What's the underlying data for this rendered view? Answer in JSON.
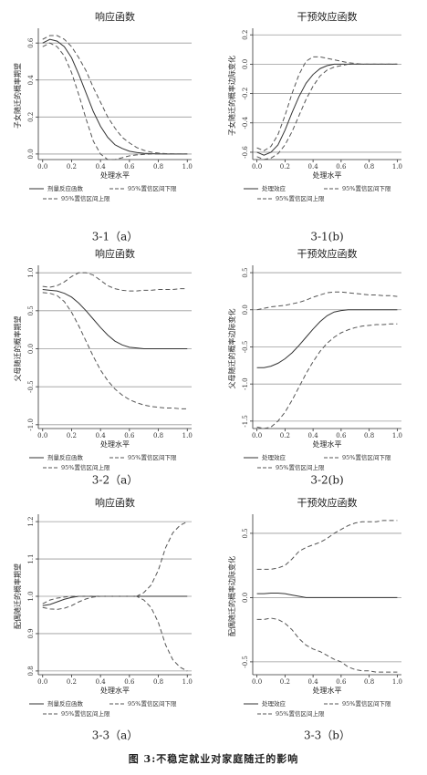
{
  "caption": "图 3:不稳定就业对家庭随迁的影响",
  "chart_data": [
    {
      "type": "line",
      "title": "响应函数",
      "caption": "3-1（a）",
      "x_label": "处理水平",
      "y_label": "子女随迁的概率期望",
      "x": [
        0,
        0.05,
        0.1,
        0.15,
        0.2,
        0.25,
        0.3,
        0.35,
        0.4,
        0.45,
        0.5,
        0.55,
        0.6,
        0.65,
        0.7,
        0.75,
        0.8,
        0.85,
        0.9,
        0.95,
        1.0
      ],
      "xlim": [
        -0.03,
        1.03
      ],
      "xticks": [
        {
          "value": 0,
          "label": "0.0"
        },
        0.2,
        0.4,
        0.6,
        0.8,
        {
          "value": 1,
          "label": "1.0"
        }
      ],
      "ylim": [
        -0.03,
        0.66
      ],
      "yticks": [
        {
          "value": 0,
          "label": "0.0"
        },
        0.2,
        0.4,
        0.6
      ],
      "grid": true,
      "series": [
        {
          "name": "剂量反应函数",
          "color": "#333333",
          "style": "solid",
          "values": [
            0.6,
            0.62,
            0.61,
            0.58,
            0.52,
            0.43,
            0.33,
            0.23,
            0.15,
            0.09,
            0.05,
            0.03,
            0.015,
            0.008,
            0.004,
            0.002,
            0.001,
            0,
            0,
            0,
            0
          ]
        },
        {
          "name": "95%置信区间下限",
          "color": "#555555",
          "style": "dashed",
          "values": [
            0.58,
            0.6,
            0.58,
            0.53,
            0.44,
            0.32,
            0.19,
            0.07,
            0,
            -0.03,
            -0.03,
            -0.02,
            -0.01,
            -0.005,
            -0.002,
            0,
            0,
            0,
            0,
            0,
            0
          ]
        },
        {
          "name": "95%置信区间上限",
          "color": "#555555",
          "style": "dashed",
          "values": [
            0.62,
            0.64,
            0.64,
            0.62,
            0.58,
            0.52,
            0.45,
            0.36,
            0.28,
            0.2,
            0.14,
            0.09,
            0.06,
            0.035,
            0.02,
            0.01,
            0.005,
            0.002,
            0.001,
            0,
            0
          ]
        }
      ]
    },
    {
      "type": "line",
      "title": "干预效应函数",
      "caption": "3-1(b)",
      "x_label": "处理水平",
      "y_label": "子女随迁的概率边际变化",
      "x": [
        0,
        0.05,
        0.1,
        0.15,
        0.2,
        0.25,
        0.3,
        0.35,
        0.4,
        0.45,
        0.5,
        0.55,
        0.6,
        0.65,
        0.7,
        0.75,
        0.8,
        0.85,
        0.9,
        0.95,
        1.0
      ],
      "xlim": [
        -0.03,
        1.03
      ],
      "xticks": [
        {
          "value": 0,
          "label": "0.0"
        },
        0.2,
        0.4,
        0.6,
        0.8,
        {
          "value": 1,
          "label": "1.0"
        }
      ],
      "ylim": [
        -0.65,
        0.22
      ],
      "yticks": [
        -0.6,
        -0.4,
        -0.2,
        {
          "value": 0,
          "label": "0.0"
        },
        0.2
      ],
      "grid": true,
      "series": [
        {
          "name": "处理效应",
          "color": "#333333",
          "style": "solid",
          "values": [
            -0.6,
            -0.62,
            -0.6,
            -0.55,
            -0.45,
            -0.33,
            -0.22,
            -0.13,
            -0.07,
            -0.03,
            -0.01,
            0,
            0,
            0,
            0,
            0,
            0,
            0,
            0,
            0,
            0
          ]
        },
        {
          "name": "95%置信区间下限",
          "color": "#555555",
          "style": "dashed",
          "values": [
            -0.63,
            -0.65,
            -0.64,
            -0.61,
            -0.55,
            -0.46,
            -0.35,
            -0.24,
            -0.15,
            -0.08,
            -0.04,
            -0.02,
            -0.01,
            0,
            0,
            0,
            0,
            0,
            0,
            0,
            0
          ]
        },
        {
          "name": "95%置信区间上限",
          "color": "#555555",
          "style": "dashed",
          "values": [
            -0.57,
            -0.59,
            -0.56,
            -0.48,
            -0.35,
            -0.2,
            -0.07,
            0.02,
            0.05,
            0.05,
            0.04,
            0.03,
            0.02,
            0.01,
            0.005,
            0,
            0,
            0,
            0,
            0,
            0
          ]
        }
      ]
    },
    {
      "type": "line",
      "title": "响应函数",
      "caption": "3-2（a）",
      "x_label": "处理水平",
      "y_label": "父母随迁的概率期望",
      "x": [
        0,
        0.05,
        0.1,
        0.15,
        0.2,
        0.25,
        0.3,
        0.35,
        0.4,
        0.45,
        0.5,
        0.55,
        0.6,
        0.65,
        0.7,
        0.75,
        0.8,
        0.85,
        0.9,
        0.95,
        1.0
      ],
      "xlim": [
        -0.03,
        1.03
      ],
      "xticks": [
        {
          "value": 0,
          "label": "0.0"
        },
        0.2,
        0.4,
        0.6,
        0.8,
        {
          "value": 1,
          "label": "1.0"
        }
      ],
      "ylim": [
        -1.05,
        1.05
      ],
      "yticks": [
        {
          "value": -1,
          "label": "-1.0"
        },
        -0.5,
        {
          "value": 0,
          "label": "0.0"
        },
        0.5,
        {
          "value": 1,
          "label": "1.0"
        }
      ],
      "grid": true,
      "series": [
        {
          "name": "剂量反应函数",
          "color": "#333333",
          "style": "solid",
          "values": [
            0.78,
            0.77,
            0.76,
            0.73,
            0.68,
            0.6,
            0.5,
            0.39,
            0.28,
            0.18,
            0.1,
            0.05,
            0.02,
            0.01,
            0,
            0,
            0,
            0,
            0,
            0,
            0
          ]
        },
        {
          "name": "95%置信区间下限",
          "color": "#555555",
          "style": "dashed",
          "values": [
            0.74,
            0.73,
            0.7,
            0.62,
            0.48,
            0.3,
            0.1,
            -0.1,
            -0.28,
            -0.42,
            -0.53,
            -0.61,
            -0.67,
            -0.71,
            -0.74,
            -0.76,
            -0.77,
            -0.78,
            -0.78,
            -0.79,
            -0.79
          ]
        },
        {
          "name": "95%置信区间上限",
          "color": "#555555",
          "style": "dashed",
          "values": [
            0.82,
            0.81,
            0.83,
            0.88,
            0.95,
            1.0,
            1.0,
            0.97,
            0.9,
            0.83,
            0.79,
            0.77,
            0.76,
            0.76,
            0.77,
            0.77,
            0.78,
            0.78,
            0.78,
            0.79,
            0.79
          ]
        }
      ]
    },
    {
      "type": "line",
      "title": "干预效应函数",
      "caption": "3-2(b)",
      "x_label": "处理水平",
      "y_label": "父母随迁的概率边际变化",
      "x": [
        0,
        0.05,
        0.1,
        0.15,
        0.2,
        0.25,
        0.3,
        0.35,
        0.4,
        0.45,
        0.5,
        0.55,
        0.6,
        0.65,
        0.7,
        0.75,
        0.8,
        0.85,
        0.9,
        0.95,
        1.0
      ],
      "xlim": [
        -0.03,
        1.03
      ],
      "xticks": [
        {
          "value": 0,
          "label": "0.0"
        },
        0.2,
        0.4,
        0.6,
        0.8,
        {
          "value": 1,
          "label": "1.0"
        }
      ],
      "ylim": [
        -1.6,
        0.55
      ],
      "yticks": [
        -1.5,
        {
          "value": -1,
          "label": "-1.0"
        },
        -0.5,
        {
          "value": 0,
          "label": "0.0"
        },
        0.5
      ],
      "grid": true,
      "series": [
        {
          "name": "处理效应",
          "color": "#333333",
          "style": "solid",
          "values": [
            -0.78,
            -0.78,
            -0.76,
            -0.72,
            -0.66,
            -0.58,
            -0.48,
            -0.37,
            -0.26,
            -0.16,
            -0.08,
            -0.03,
            -0.01,
            0,
            0,
            0,
            0,
            0,
            0,
            0,
            0
          ]
        },
        {
          "name": "95%置信区间下限",
          "color": "#555555",
          "style": "dashed",
          "values": [
            -1.58,
            -1.6,
            -1.58,
            -1.5,
            -1.38,
            -1.22,
            -1.04,
            -0.86,
            -0.7,
            -0.56,
            -0.45,
            -0.37,
            -0.31,
            -0.27,
            -0.24,
            -0.22,
            -0.21,
            -0.2,
            -0.2,
            -0.19,
            -0.19
          ]
        },
        {
          "name": "95%置信区间上限",
          "color": "#555555",
          "style": "dashed",
          "values": [
            0,
            0.02,
            0.04,
            0.05,
            0.06,
            0.08,
            0.1,
            0.13,
            0.17,
            0.2,
            0.23,
            0.24,
            0.24,
            0.23,
            0.22,
            0.21,
            0.2,
            0.2,
            0.19,
            0.19,
            0.18
          ]
        }
      ]
    },
    {
      "type": "line",
      "title": "响应函数",
      "caption": "3-3（a）",
      "x_label": "处理水平",
      "y_label": "配偶随迁的概率期望",
      "x": [
        0,
        0.05,
        0.1,
        0.15,
        0.2,
        0.25,
        0.3,
        0.35,
        0.4,
        0.45,
        0.5,
        0.55,
        0.6,
        0.65,
        0.7,
        0.75,
        0.8,
        0.85,
        0.9,
        0.95,
        1.0
      ],
      "xlim": [
        -0.03,
        1.03
      ],
      "xticks": [
        {
          "value": 0,
          "label": "0.0"
        },
        0.2,
        0.4,
        0.6,
        0.8,
        {
          "value": 1,
          "label": "1.0"
        }
      ],
      "ylim": [
        0.79,
        1.21
      ],
      "yticks": [
        0.8,
        0.9,
        {
          "value": 1,
          "label": "1.0"
        },
        1.1,
        1.2
      ],
      "grid": true,
      "series": [
        {
          "name": "剂量反应函数",
          "color": "#333333",
          "style": "solid",
          "values": [
            0.975,
            0.978,
            0.985,
            0.992,
            0.997,
            1,
            1,
            1,
            1,
            1,
            1,
            1,
            1,
            1,
            1,
            1,
            1,
            1,
            1,
            1,
            1
          ]
        },
        {
          "name": "95%置信区间下限",
          "color": "#555555",
          "style": "dashed",
          "values": [
            0.97,
            0.966,
            0.965,
            0.968,
            0.975,
            0.985,
            0.993,
            0.998,
            1,
            1,
            1,
            1,
            1,
            1,
            0.99,
            0.97,
            0.93,
            0.87,
            0.83,
            0.81,
            0.8
          ]
        },
        {
          "name": "95%置信区间上限",
          "color": "#555555",
          "style": "dashed",
          "values": [
            0.98,
            0.99,
            0.995,
            0.998,
            1,
            1,
            1,
            1,
            1,
            1,
            1,
            1,
            1,
            1,
            1.01,
            1.03,
            1.07,
            1.13,
            1.17,
            1.19,
            1.2
          ]
        }
      ]
    },
    {
      "type": "line",
      "title": "干预效应函数",
      "caption": "3-3（b）",
      "x_label": "处理水平",
      "y_label": "配偶随迁的概率边际变化",
      "x": [
        0,
        0.05,
        0.1,
        0.15,
        0.2,
        0.25,
        0.3,
        0.35,
        0.4,
        0.45,
        0.5,
        0.55,
        0.6,
        0.65,
        0.7,
        0.75,
        0.8,
        0.85,
        0.9,
        0.95,
        1.0
      ],
      "xlim": [
        -0.03,
        1.03
      ],
      "xticks": [
        {
          "value": 0,
          "label": "0.0"
        },
        0.2,
        0.4,
        0.6,
        0.8,
        {
          "value": 1,
          "label": "1.0"
        }
      ],
      "ylim": [
        -0.6,
        0.62
      ],
      "yticks": [
        -0.5,
        {
          "value": 0,
          "label": "0.0"
        },
        0.5
      ],
      "grid": true,
      "series": [
        {
          "name": "处理效应",
          "color": "#333333",
          "style": "solid",
          "values": [
            0.03,
            0.03,
            0.035,
            0.035,
            0.03,
            0.02,
            0.01,
            0,
            0,
            0,
            0,
            0,
            0,
            0,
            0,
            0,
            0,
            0,
            0,
            0,
            0
          ]
        },
        {
          "name": "95%置信区间下限",
          "color": "#555555",
          "style": "dashed",
          "values": [
            -0.17,
            -0.17,
            -0.16,
            -0.17,
            -0.2,
            -0.25,
            -0.32,
            -0.37,
            -0.4,
            -0.42,
            -0.45,
            -0.48,
            -0.5,
            -0.54,
            -0.56,
            -0.57,
            -0.57,
            -0.58,
            -0.58,
            -0.58,
            -0.58
          ]
        },
        {
          "name": "95%置信区间上限",
          "color": "#555555",
          "style": "dashed",
          "values": [
            0.22,
            0.22,
            0.22,
            0.23,
            0.25,
            0.3,
            0.36,
            0.39,
            0.41,
            0.43,
            0.46,
            0.5,
            0.53,
            0.56,
            0.58,
            0.59,
            0.59,
            0.59,
            0.6,
            0.6,
            0.6
          ]
        }
      ]
    }
  ]
}
